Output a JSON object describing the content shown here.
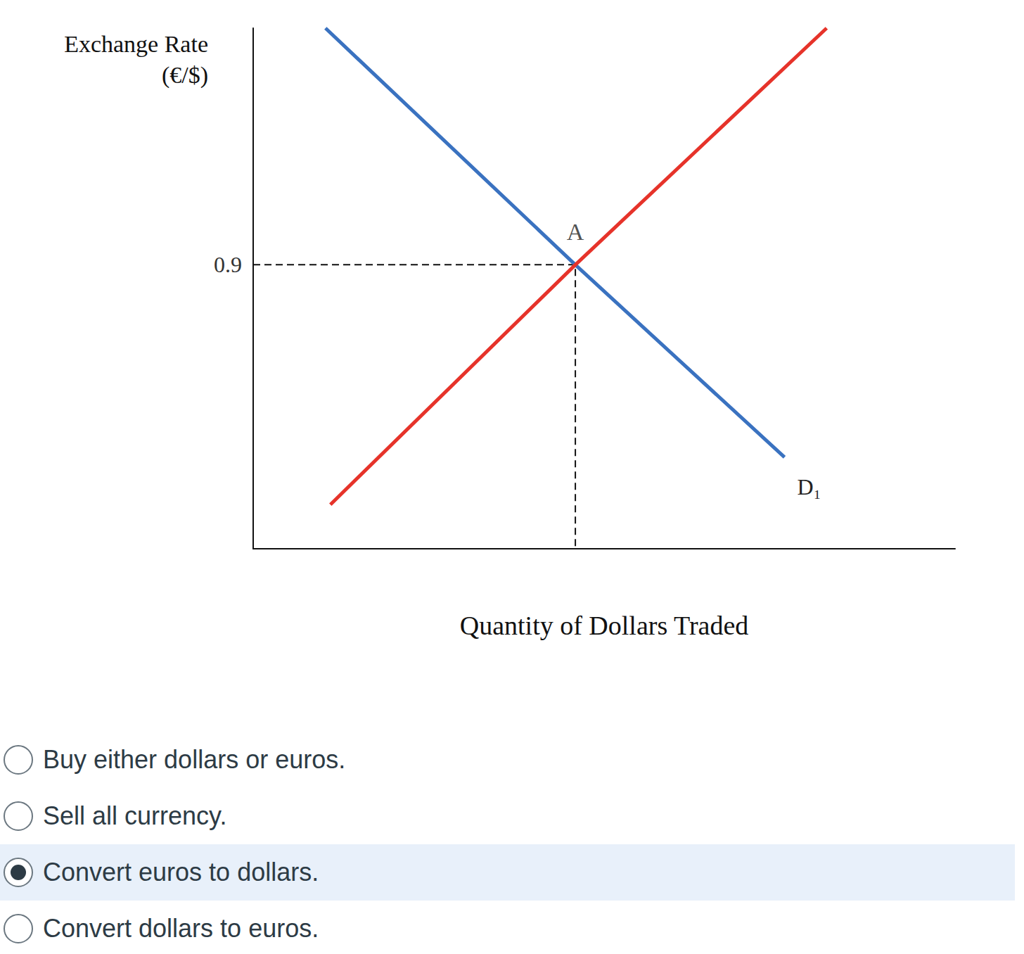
{
  "chart_data": {
    "type": "line",
    "xlabel": "Quantity of Dollars Traded",
    "ylabel": "Exchange Rate\n(€/$)",
    "xlim": [
      0,
      100
    ],
    "xticks": [],
    "ylim": [
      0,
      1.65
    ],
    "yticks": [
      0.9
    ],
    "tick_labels": "y",
    "grid": false,
    "series": [
      {
        "name": "D₁",
        "color": "#3a72c0",
        "values": [
          [
            10.3,
            1.65
          ],
          [
            45.9,
            0.9
          ],
          [
            75.7,
            0.29
          ]
        ]
      },
      {
        "color": "#e6332a",
        "values": [
          [
            11.0,
            0.14
          ],
          [
            45.9,
            0.9
          ],
          [
            81.7,
            1.65
          ]
        ]
      }
    ],
    "points": [
      {
        "label": "A",
        "x": 45.9,
        "y": 0.9
      }
    ]
  },
  "question": {
    "options": [
      "Buy either dollars or euros.",
      "Sell all currency.",
      "Convert euros to dollars.",
      "Convert dollars to euros."
    ],
    "selected": 2
  }
}
